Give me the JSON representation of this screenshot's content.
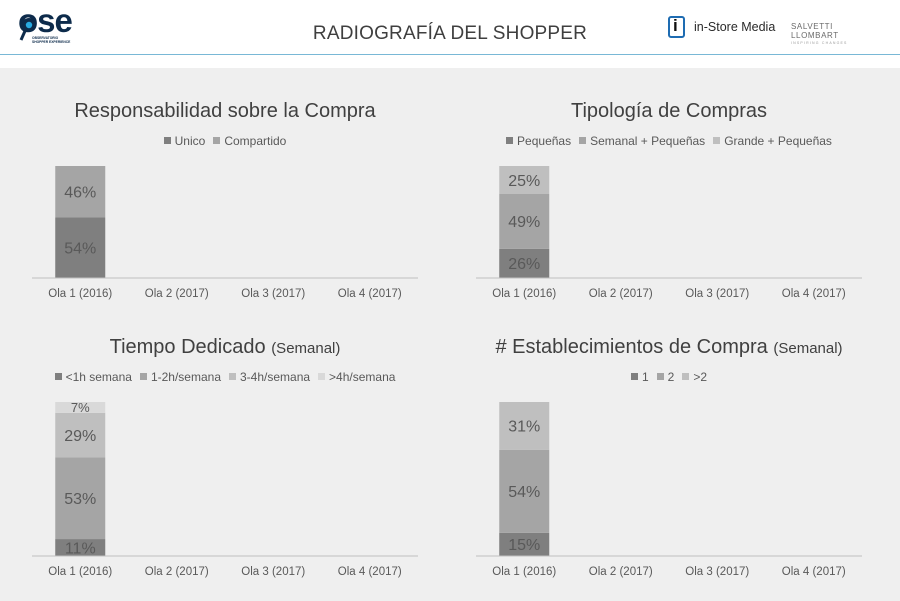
{
  "header": {
    "logo_ose_word": "ose",
    "logo_ose_tagline": "OBSERVATORIO SHOPPER EXPERIENCE",
    "title": "RADIOGRAFÍA DEL SHOPPER",
    "logo_instore_mark": "i",
    "logo_instore_text": "in-Store Media",
    "logo_salvetti_text": "SALVETTI LLOMBART",
    "logo_salvetti_sub": "INSPIRING CHANGES",
    "rule_color": "#79b8d6"
  },
  "chart_data": [
    {
      "type": "bar",
      "stacked": true,
      "title": "Responsabilidad sobre la Compra",
      "title_suffix": "",
      "categories": [
        "Ola 1 (2016)",
        "Ola 2 (2017)",
        "Ola 3 (2017)",
        "Ola 4 (2017)"
      ],
      "series": [
        {
          "name": "Unico",
          "color": "#7f7f7f",
          "values": [
            54,
            null,
            null,
            null
          ],
          "labels": [
            "54%",
            "",
            "",
            ""
          ]
        },
        {
          "name": "Compartido",
          "color": "#a5a5a5",
          "values": [
            46,
            null,
            null,
            null
          ],
          "labels": [
            "46%",
            "",
            "",
            ""
          ]
        }
      ],
      "ylim": [
        0,
        100
      ],
      "legend": "top",
      "grid": false
    },
    {
      "type": "bar",
      "stacked": true,
      "title": "Tipología de Compras",
      "title_suffix": "",
      "categories": [
        "Ola 1 (2016)",
        "Ola 2 (2017)",
        "Ola 3 (2017)",
        "Ola 4 (2017)"
      ],
      "series": [
        {
          "name": "Pequeñas",
          "color": "#7f7f7f",
          "values": [
            26,
            null,
            null,
            null
          ],
          "labels": [
            "26%",
            "",
            "",
            ""
          ]
        },
        {
          "name": "Semanal + Pequeñas",
          "color": "#a5a5a5",
          "values": [
            49,
            null,
            null,
            null
          ],
          "labels": [
            "49%",
            "",
            "",
            ""
          ]
        },
        {
          "name": "Grande + Pequeñas",
          "color": "#bfbfbf",
          "values": [
            25,
            null,
            null,
            null
          ],
          "labels": [
            "25%",
            "",
            "",
            ""
          ]
        }
      ],
      "ylim": [
        0,
        100
      ],
      "legend": "top",
      "grid": false
    },
    {
      "type": "bar",
      "stacked": true,
      "title": "Tiempo Dedicado",
      "title_suffix": "(Semanal)",
      "categories": [
        "Ola 1 (2016)",
        "Ola 2 (2017)",
        "Ola 3 (2017)",
        "Ola 4 (2017)"
      ],
      "series": [
        {
          "name": "<1h semana",
          "color": "#7f7f7f",
          "values": [
            11,
            null,
            null,
            null
          ],
          "labels": [
            "11%",
            "",
            "",
            ""
          ]
        },
        {
          "name": "1-2h/semana",
          "color": "#a5a5a5",
          "values": [
            53,
            null,
            null,
            null
          ],
          "labels": [
            "53%",
            "",
            "",
            ""
          ]
        },
        {
          "name": "3-4h/semana",
          "color": "#bfbfbf",
          "values": [
            29,
            null,
            null,
            null
          ],
          "labels": [
            "29%",
            "",
            "",
            ""
          ]
        },
        {
          "name": ">4h/semana",
          "color": "#d9d9d9",
          "values": [
            7,
            null,
            null,
            null
          ],
          "labels": [
            "7%",
            "",
            "",
            ""
          ]
        }
      ],
      "ylim": [
        0,
        100
      ],
      "legend": "top",
      "grid": false
    },
    {
      "type": "bar",
      "stacked": true,
      "title": "# Establecimientos de Compra",
      "title_suffix": "(Semanal)",
      "categories": [
        "Ola 1 (2016)",
        "Ola 2 (2017)",
        "Ola 3 (2017)",
        "Ola 4 (2017)"
      ],
      "series": [
        {
          "name": "1",
          "color": "#7f7f7f",
          "values": [
            15,
            null,
            null,
            null
          ],
          "labels": [
            "15%",
            "",
            "",
            ""
          ]
        },
        {
          "name": "2",
          "color": "#a5a5a5",
          "values": [
            54,
            null,
            null,
            null
          ],
          "labels": [
            "54%",
            "",
            "",
            ""
          ]
        },
        {
          "name": ">2",
          "color": "#bfbfbf",
          "values": [
            31,
            null,
            null,
            null
          ],
          "labels": [
            "31%",
            "",
            "",
            ""
          ]
        }
      ],
      "ylim": [
        0,
        100
      ],
      "legend": "top",
      "grid": false
    }
  ]
}
